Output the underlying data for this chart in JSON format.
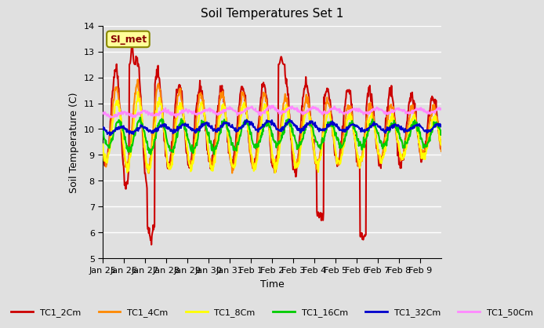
{
  "title": "Soil Temperatures Set 1",
  "xlabel": "Time",
  "ylabel": "Soil Temperature (C)",
  "ylim": [
    5.0,
    14.0
  ],
  "yticks": [
    5.0,
    6.0,
    7.0,
    8.0,
    9.0,
    10.0,
    11.0,
    12.0,
    13.0,
    14.0
  ],
  "x_labels": [
    "Jan 25",
    "Jan 26",
    "Jan 27",
    "Jan 28",
    "Jan 29",
    "Jan 30",
    "Jan 31",
    "Feb 1",
    "Feb 2",
    "Feb 3",
    "Feb 4",
    "Feb 5",
    "Feb 6",
    "Feb 7",
    "Feb 8",
    "Feb 9"
  ],
  "annotation_text": "SI_met",
  "annotation_box_color": "#FFFF99",
  "annotation_border_color": "#888800",
  "annotation_text_color": "#880000",
  "bg_color": "#E0E0E0",
  "plot_bg_color": "#E0E0E0",
  "grid_color": "white",
  "series": [
    {
      "label": "TC1_2Cm",
      "color": "#CC0000",
      "lw": 1.5
    },
    {
      "label": "TC1_4Cm",
      "color": "#FF8800",
      "lw": 1.5
    },
    {
      "label": "TC1_8Cm",
      "color": "#FFFF00",
      "lw": 1.5
    },
    {
      "label": "TC1_16Cm",
      "color": "#00CC00",
      "lw": 1.5
    },
    {
      "label": "TC1_32Cm",
      "color": "#0000CC",
      "lw": 1.5
    },
    {
      "label": "TC1_50Cm",
      "color": "#FF88FF",
      "lw": 1.5
    }
  ]
}
